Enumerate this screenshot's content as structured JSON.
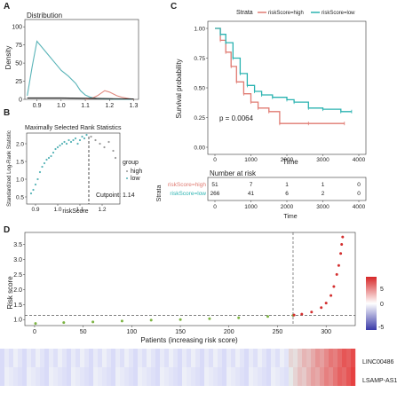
{
  "panels": {
    "A": {
      "letter": "A",
      "title": "Distribution",
      "ylabel": "Density",
      "x_ticks": [
        "0.9",
        "1.0",
        "1.1",
        "1.2",
        "1.3"
      ],
      "y_ticks": [
        "0",
        "25",
        "50",
        "75",
        "100"
      ],
      "colors": {
        "teal": "#5ab4b8",
        "red": "#e08a80",
        "black": "#222222"
      }
    },
    "B": {
      "letter": "B",
      "title": "Maximally Selected Rank Statistics",
      "ylabel": "Standardized Log-Rank Statistic",
      "xlabel": "riskScore",
      "x_ticks": [
        "0.9",
        "1.0",
        "1.1",
        "1.2"
      ],
      "y_ticks": [
        "0.5",
        "1.0",
        "1.5",
        "2.0"
      ],
      "legend_title": "group",
      "legend_items": [
        "high",
        "low"
      ],
      "cutpoint": "Cutpoint: 1.14",
      "cutpoint_value": 1.14,
      "colors": {
        "low": "#5ab4b8",
        "high": "#999999"
      }
    },
    "C": {
      "letter": "C",
      "legend_title": "Strata",
      "legend_items": [
        {
          "label": "riskScore=high",
          "color": "#e07b72"
        },
        {
          "label": "riskScore=low",
          "color": "#2bb3b1"
        }
      ],
      "ylabel": "Survival probability",
      "xlabel": "Time",
      "x_ticks": [
        "0",
        "1000",
        "2000",
        "3000",
        "4000"
      ],
      "y_ticks": [
        "0.00",
        "0.25",
        "0.50",
        "0.75",
        "1.00"
      ],
      "pvalue": "p = 0.0064",
      "risk_table": {
        "title": "Number at risk",
        "ylabel": "Strata",
        "rows": [
          {
            "label": "riskScore=high",
            "color": "#e07b72",
            "values": [
              "51",
              "7",
              "1",
              "1",
              "0"
            ]
          },
          {
            "label": "riskScore=low",
            "color": "#2bb3b1",
            "values": [
              "266",
              "41",
              "6",
              "2",
              "0"
            ]
          }
        ],
        "x_ticks": [
          "0",
          "1000",
          "2000",
          "3000",
          "4000"
        ],
        "xlabel": "Time"
      }
    },
    "D": {
      "letter": "D",
      "ylabel": "Risk score",
      "xlabel": "Patients (increasing risk score)",
      "x_ticks": [
        "0",
        "50",
        "100",
        "150",
        "200",
        "250",
        "300"
      ],
      "y_ticks": [
        "1.0",
        "1.5",
        "2.0",
        "2.5",
        "3.0",
        "3.5"
      ],
      "threshold_index": 266,
      "threshold_value": 1.14,
      "colors": {
        "low": "#7cb342",
        "high": "#d32f2f"
      },
      "heatmap_genes": [
        "LINC00486",
        "LSAMP-AS1"
      ],
      "colorbar_ticks": [
        "5",
        "0",
        "-5"
      ]
    }
  },
  "chart_data": [
    {
      "type": "area",
      "title": "Distribution",
      "ylabel": "Density",
      "xlim": [
        0.85,
        1.32
      ],
      "ylim": [
        0,
        110
      ],
      "series": [
        {
          "x": [
            0.86,
            0.88,
            0.9,
            0.92,
            0.95,
            0.98,
            1.0,
            1.03,
            1.06,
            1.08,
            1.1,
            1.12,
            1.15,
            1.2,
            1.25,
            1.3
          ],
          "y": [
            5,
            45,
            80,
            72,
            60,
            48,
            40,
            32,
            22,
            12,
            6,
            3,
            1,
            0.5,
            0.2,
            0
          ]
        },
        {
          "x": [
            1.1,
            1.13,
            1.15,
            1.18,
            1.2,
            1.23,
            1.25,
            1.28,
            1.3
          ],
          "y": [
            0,
            2,
            5,
            12,
            10,
            5,
            3,
            1,
            0
          ]
        },
        {
          "x": [
            0.86,
            1.0,
            1.12,
            1.2,
            1.3
          ],
          "y": [
            2,
            2,
            1.5,
            1,
            0.5
          ]
        }
      ]
    },
    {
      "type": "scatter",
      "title": "Maximally Selected Rank Statistics",
      "xlabel": "riskScore",
      "ylabel": "Standardized Log-Rank Statistic",
      "xlim": [
        0.86,
        1.28
      ],
      "ylim": [
        0.3,
        2.3
      ],
      "cutpoint": 1.14,
      "series": [
        {
          "name": "low",
          "x": [
            0.88,
            0.89,
            0.9,
            0.91,
            0.92,
            0.93,
            0.94,
            0.95,
            0.96,
            0.97,
            0.98,
            0.99,
            1.0,
            1.01,
            1.02,
            1.03,
            1.04,
            1.05,
            1.06,
            1.07,
            1.08,
            1.09,
            1.1,
            1.11,
            1.12,
            1.13
          ],
          "y": [
            0.6,
            0.7,
            0.85,
            1.0,
            1.2,
            1.35,
            1.45,
            1.55,
            1.6,
            1.65,
            1.75,
            1.85,
            1.9,
            1.95,
            2.0,
            2.05,
            2.0,
            2.1,
            2.05,
            2.1,
            2.15,
            2.0,
            2.1,
            2.2,
            2.15,
            2.25
          ]
        },
        {
          "name": "high",
          "x": [
            1.15,
            1.17,
            1.19,
            1.21,
            1.23,
            1.25,
            1.26
          ],
          "y": [
            2.2,
            2.1,
            2.0,
            1.9,
            2.05,
            1.8,
            1.6
          ]
        }
      ]
    },
    {
      "type": "line",
      "xlabel": "Time",
      "ylabel": "Survival probability",
      "xlim": [
        0,
        4000
      ],
      "ylim": [
        0,
        1
      ],
      "series": [
        {
          "name": "riskScore=high",
          "x": [
            0,
            150,
            300,
            450,
            600,
            800,
            1000,
            1200,
            1500,
            1800,
            2600,
            3600
          ],
          "y": [
            1.0,
            0.9,
            0.8,
            0.68,
            0.55,
            0.45,
            0.38,
            0.33,
            0.3,
            0.2,
            0.2,
            0.2
          ]
        },
        {
          "name": "riskScore=low",
          "x": [
            0,
            150,
            300,
            500,
            700,
            900,
            1100,
            1300,
            1600,
            2000,
            2200,
            2600,
            3000,
            3500,
            3800
          ],
          "y": [
            1.0,
            0.95,
            0.88,
            0.75,
            0.62,
            0.52,
            0.47,
            0.44,
            0.42,
            0.4,
            0.38,
            0.33,
            0.32,
            0.3,
            0.3
          ]
        }
      ]
    },
    {
      "type": "scatter",
      "xlabel": "Patients (increasing risk score)",
      "ylabel": "Risk score",
      "xlim": [
        -10,
        330
      ],
      "ylim": [
        0.8,
        3.9
      ],
      "threshold": 1.14,
      "series": [
        {
          "name": "low",
          "x": [
            1,
            30,
            60,
            90,
            120,
            150,
            180,
            210,
            240,
            266
          ],
          "y": [
            0.87,
            0.9,
            0.92,
            0.95,
            0.98,
            1.0,
            1.03,
            1.06,
            1.1,
            1.14
          ]
        },
        {
          "name": "high",
          "x": [
            267,
            275,
            285,
            295,
            300,
            305,
            308,
            311,
            313,
            315,
            316,
            317
          ],
          "y": [
            1.15,
            1.18,
            1.25,
            1.4,
            1.55,
            1.8,
            2.1,
            2.5,
            2.8,
            3.2,
            3.5,
            3.75
          ]
        }
      ]
    }
  ]
}
